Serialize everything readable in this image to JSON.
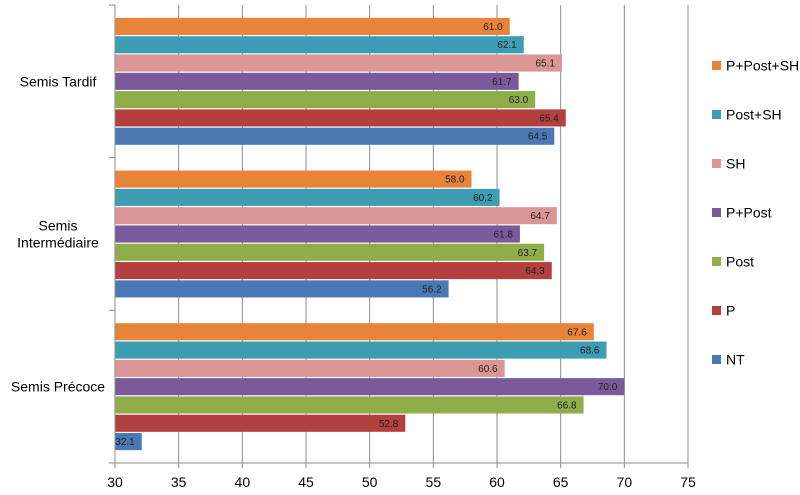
{
  "chart_data": {
    "type": "bar",
    "orientation": "horizontal",
    "title": "",
    "xlabel": "",
    "ylabel": "",
    "xlim": [
      30,
      75
    ],
    "xticks": [
      30,
      35,
      40,
      45,
      50,
      55,
      60,
      65,
      70,
      75
    ],
    "grid": "vertical",
    "legend_position": "right",
    "categories": [
      "Semis Tardif",
      "Semis Intermédiaire",
      "Semis Précoce"
    ],
    "category_labels": [
      [
        "Semis Tardif"
      ],
      [
        "Semis",
        "Intermédiaire"
      ],
      [
        "Semis Précoce"
      ]
    ],
    "series": [
      {
        "name": "P+Post+SH",
        "color": "#E8833A",
        "values": [
          61.0,
          58.0,
          67.6
        ],
        "labels": [
          "61.0",
          "58.0",
          "67.6"
        ]
      },
      {
        "name": "Post+SH",
        "color": "#3C9DB4",
        "values": [
          62.1,
          60.2,
          68.6
        ],
        "labels": [
          "62.1",
          "60.2",
          "68.6"
        ]
      },
      {
        "name": "SH",
        "color": "#D99694",
        "values": [
          65.1,
          64.7,
          60.6
        ],
        "labels": [
          "65.1",
          "64.7",
          "60.6"
        ]
      },
      {
        "name": "P+Post",
        "color": "#7A5A9A",
        "values": [
          61.7,
          61.8,
          70.0
        ],
        "labels": [
          "61.7",
          "61.8",
          "70.0"
        ]
      },
      {
        "name": "Post",
        "color": "#8FAE4A",
        "values": [
          63.0,
          63.7,
          66.8
        ],
        "labels": [
          "63.0",
          "63.7",
          "66.8"
        ]
      },
      {
        "name": "P",
        "color": "#B33F3F",
        "values": [
          65.4,
          64.3,
          52.8
        ],
        "labels": [
          "65.4",
          "64.3",
          "52.8"
        ]
      },
      {
        "name": "NT",
        "color": "#4A78B5",
        "values": [
          64.5,
          56.2,
          32.1
        ],
        "labels": [
          "64.5",
          "56.2",
          "32.1"
        ]
      }
    ]
  }
}
